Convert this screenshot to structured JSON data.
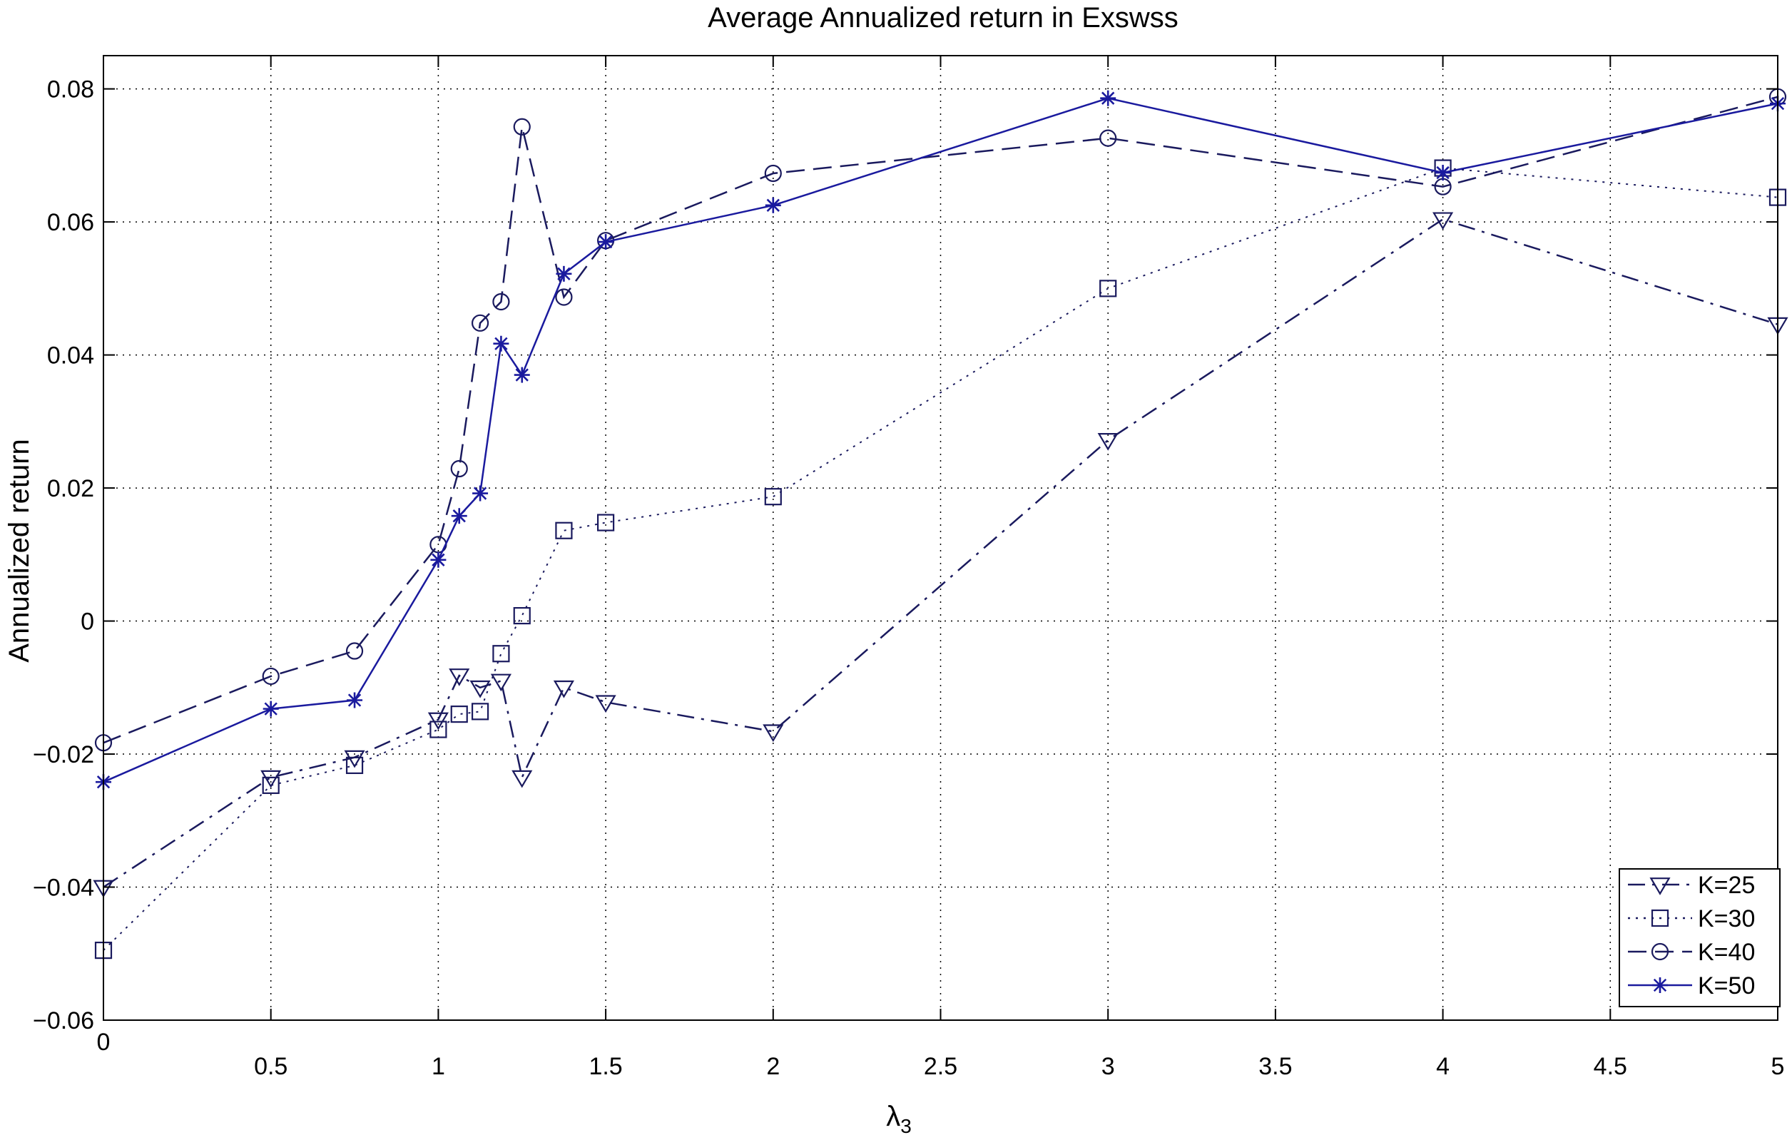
{
  "chart_data": {
    "type": "line",
    "title": "Average Annualized return in Exswss",
    "xlabel": "λ",
    "xlabel_sub": "3",
    "ylabel": "Annualized return",
    "xlim": [
      0,
      5
    ],
    "ylim": [
      -0.06,
      0.085
    ],
    "xticks": [
      0,
      0.5,
      1,
      1.5,
      2,
      2.5,
      3,
      3.5,
      4,
      4.5,
      5
    ],
    "xtick_labels": [
      "0",
      "0.5",
      "1",
      "1.5",
      "2",
      "2.5",
      "3",
      "3.5",
      "4",
      "4.5",
      "5"
    ],
    "yticks": [
      -0.06,
      -0.04,
      -0.02,
      0,
      0.02,
      0.04,
      0.06,
      0.08
    ],
    "ytick_labels": [
      "−0.06",
      "−0.04",
      "−0.02",
      "0",
      "0.02",
      "0.04",
      "0.06",
      "0.08"
    ],
    "grid": true,
    "legend_position": "bottom-right",
    "series": [
      {
        "name": "K=25",
        "color": "#1a1a5e",
        "dash": "dashdot",
        "marker": "triangle-down",
        "x": [
          0,
          0.5,
          0.75,
          1,
          1.0625,
          1.125,
          1.1875,
          1.25,
          1.375,
          1.5,
          2,
          3,
          4,
          5
        ],
        "y": [
          -0.04,
          -0.0235,
          -0.0205,
          -0.0148,
          -0.0082,
          -0.01,
          -0.009,
          -0.0235,
          -0.01,
          -0.0122,
          -0.0166,
          0.0272,
          0.0604,
          0.0446
        ]
      },
      {
        "name": "K=30",
        "color": "#1a1a5e",
        "dash": "dotted",
        "marker": "square",
        "x": [
          0,
          0.5,
          0.75,
          1,
          1.0625,
          1.125,
          1.1875,
          1.25,
          1.375,
          1.5,
          2,
          3,
          4,
          5
        ],
        "y": [
          -0.0495,
          -0.0247,
          -0.0217,
          -0.0163,
          -0.014,
          -0.0136,
          -0.0049,
          0.0008,
          0.0136,
          0.0148,
          0.0187,
          0.05,
          0.0681,
          0.0637
        ]
      },
      {
        "name": "K=40",
        "color": "#1a1a5e",
        "dash": "dashed",
        "marker": "circle",
        "x": [
          0,
          0.5,
          0.75,
          1,
          1.0625,
          1.125,
          1.1875,
          1.25,
          1.375,
          1.5,
          2,
          3,
          4,
          5
        ],
        "y": [
          -0.0183,
          -0.0083,
          -0.0045,
          0.0115,
          0.0229,
          0.0448,
          0.048,
          0.0743,
          0.0487,
          0.0572,
          0.0673,
          0.0726,
          0.0653,
          0.0788
        ]
      },
      {
        "name": "K=50",
        "color": "#1a1a9e",
        "dash": "solid",
        "marker": "star",
        "x": [
          0,
          0.5,
          0.75,
          1,
          1.0625,
          1.125,
          1.1875,
          1.25,
          1.375,
          1.5,
          2,
          3,
          4,
          5
        ],
        "y": [
          -0.0242,
          -0.0132,
          -0.0119,
          0.0092,
          0.0158,
          0.0192,
          0.0417,
          0.037,
          0.0522,
          0.057,
          0.0625,
          0.0786,
          0.0674,
          0.0778
        ]
      }
    ]
  }
}
